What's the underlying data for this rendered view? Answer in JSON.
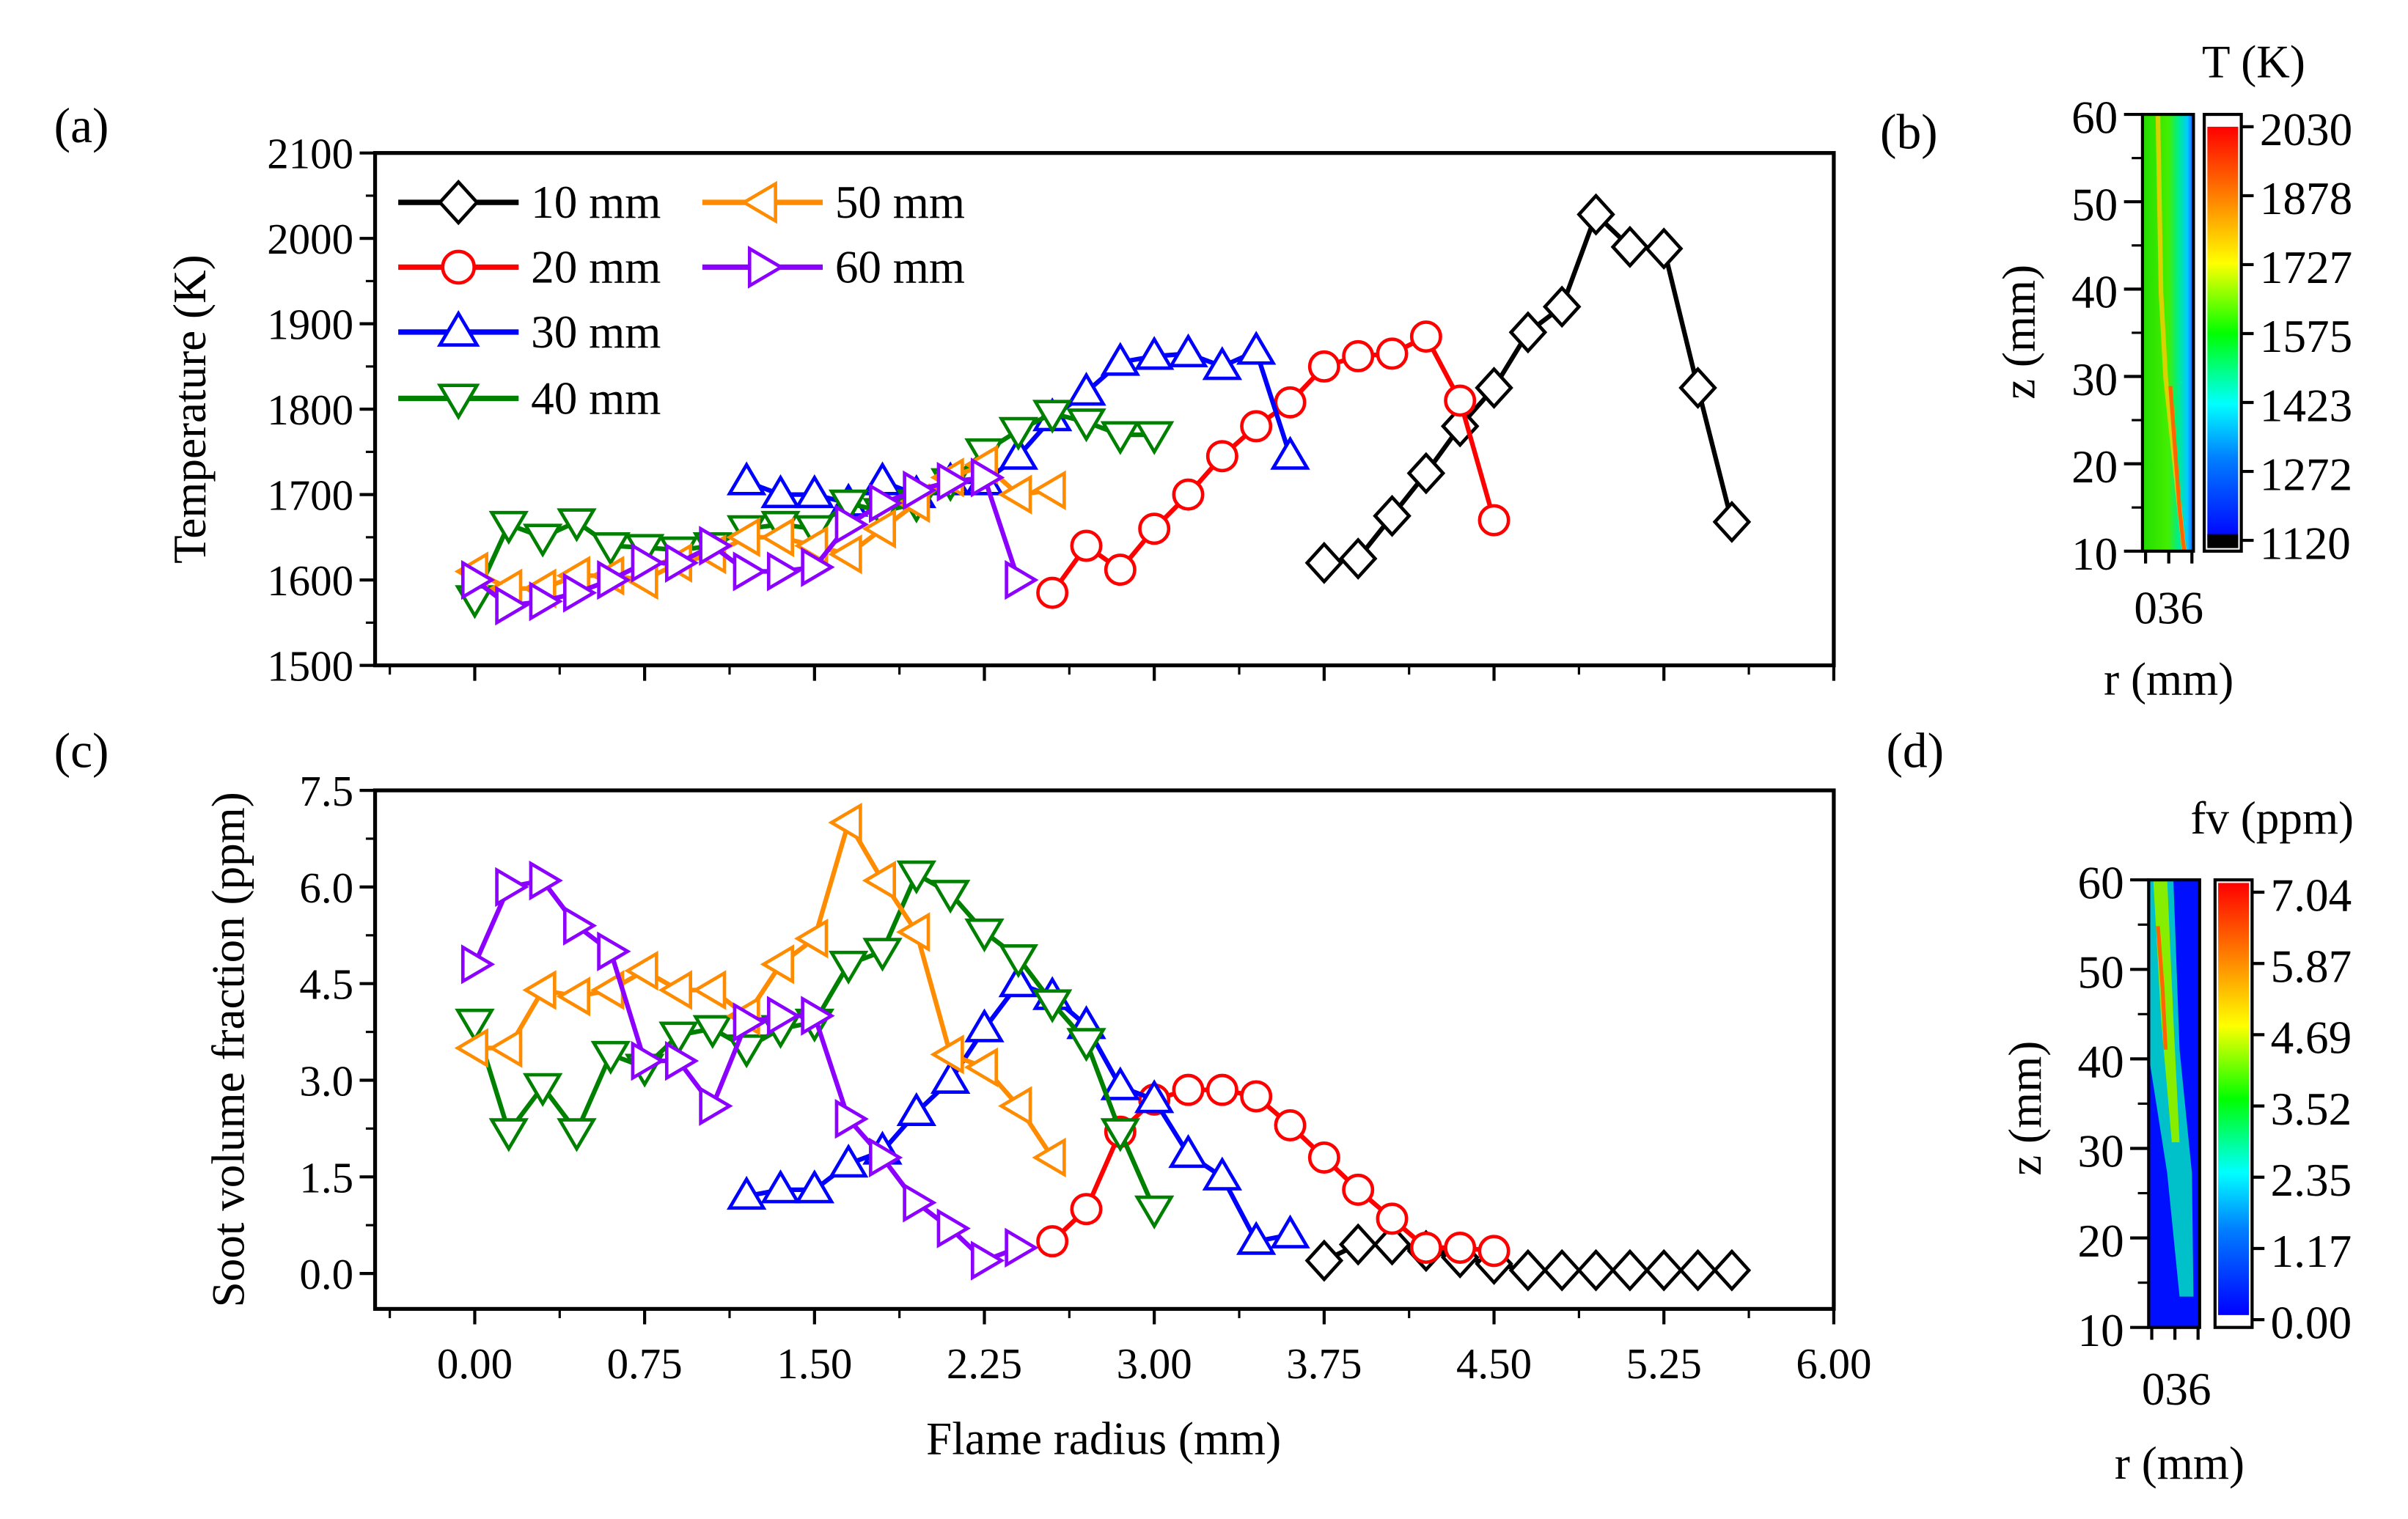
{
  "chart_data": [
    {
      "type": "line",
      "panel_label": "(a)",
      "title": "",
      "xlabel": "",
      "ylabel": "Temperature (K)",
      "xlim": [
        -0.44,
        6.0
      ],
      "ylim": [
        1500,
        2100
      ],
      "xticks": [
        "0.00",
        "0.75",
        "1.50",
        "2.25",
        "3.00",
        "3.75",
        "4.50",
        "5.25",
        "6.00"
      ],
      "yticks": [
        "1500",
        "1600",
        "1700",
        "1800",
        "1900",
        "2000",
        "2100"
      ],
      "legend_position": "top-left",
      "series": [
        {
          "name": "10 mm",
          "color": "#000000",
          "marker": "diamond",
          "x": [
            3.75,
            3.9,
            4.05,
            4.2,
            4.35,
            4.5,
            4.65,
            4.8,
            4.95,
            5.1,
            5.25,
            5.4,
            5.55
          ],
          "y": [
            1620,
            1625,
            1675,
            1725,
            1780,
            1825,
            1890,
            1920,
            2028,
            1990,
            1988,
            1825,
            1668
          ]
        },
        {
          "name": "20 mm",
          "color": "#ff0000",
          "marker": "circle",
          "x": [
            2.55,
            2.7,
            2.85,
            3.0,
            3.15,
            3.3,
            3.45,
            3.6,
            3.75,
            3.9,
            4.05,
            4.2,
            4.35,
            4.5
          ],
          "y": [
            1585,
            1640,
            1612,
            1660,
            1700,
            1745,
            1780,
            1808,
            1850,
            1862,
            1865,
            1885,
            1810,
            1670
          ]
        },
        {
          "name": "30 mm",
          "color": "#0000ff",
          "marker": "triangle-up",
          "x": [
            1.2,
            1.35,
            1.5,
            1.65,
            1.8,
            1.95,
            2.1,
            2.25,
            2.4,
            2.55,
            2.7,
            2.85,
            3.0,
            3.15,
            3.3,
            3.45,
            3.6
          ],
          "y": [
            1715,
            1700,
            1700,
            1690,
            1715,
            1700,
            1715,
            1715,
            1745,
            1790,
            1820,
            1855,
            1862,
            1865,
            1850,
            1868,
            1745
          ]
        },
        {
          "name": "40 mm",
          "color": "#008000",
          "marker": "triangle-down",
          "x": [
            0.0,
            0.15,
            0.3,
            0.45,
            0.6,
            0.75,
            0.9,
            1.05,
            1.2,
            1.35,
            1.5,
            1.65,
            1.8,
            1.95,
            2.1,
            2.25,
            2.4,
            2.55,
            2.7,
            2.85,
            3.0
          ],
          "y": [
            1578,
            1665,
            1650,
            1668,
            1640,
            1638,
            1635,
            1640,
            1660,
            1665,
            1660,
            1690,
            1680,
            1690,
            1715,
            1750,
            1775,
            1795,
            1785,
            1770,
            1770
          ]
        },
        {
          "name": "50 mm",
          "color": "#ff8c00",
          "marker": "triangle-left",
          "x": [
            0.0,
            0.15,
            0.3,
            0.45,
            0.6,
            0.75,
            0.9,
            1.05,
            1.2,
            1.35,
            1.5,
            1.65,
            1.8,
            1.95,
            2.1,
            2.25,
            2.4,
            2.55
          ],
          "y": [
            1610,
            1590,
            1590,
            1605,
            1605,
            1600,
            1620,
            1630,
            1650,
            1650,
            1640,
            1630,
            1660,
            1690,
            1720,
            1735,
            1700,
            1705
          ]
        },
        {
          "name": "60 mm",
          "color": "#8b00ff",
          "marker": "triangle-right",
          "x": [
            0.0,
            0.15,
            0.3,
            0.45,
            0.6,
            0.75,
            0.9,
            1.05,
            1.2,
            1.35,
            1.5,
            1.65,
            1.8,
            1.95,
            2.1,
            2.25,
            2.4
          ],
          "y": [
            1600,
            1570,
            1575,
            1585,
            1600,
            1620,
            1620,
            1640,
            1610,
            1610,
            1615,
            1665,
            1690,
            1705,
            1715,
            1720,
            1600
          ]
        }
      ]
    },
    {
      "type": "heatmap",
      "panel_label": "(b)",
      "colorbar_title": "T (K)",
      "ylabel": "z (mm)",
      "xlabel": "r (mm)",
      "xticks": "036",
      "yticks": [
        "60",
        "50",
        "40",
        "30",
        "20",
        "10"
      ],
      "colorbar_ticks": [
        "2030",
        "1878",
        "1727",
        "1575",
        "1423",
        "1272",
        "1120"
      ]
    },
    {
      "type": "line",
      "panel_label": "(c)",
      "title": "",
      "xlabel": "Flame radius (mm)",
      "ylabel": "Soot volume fraction (ppm)",
      "xlim": [
        -0.44,
        6.0
      ],
      "ylim": [
        -0.55,
        7.5
      ],
      "xticks": [
        "0.00",
        "0.75",
        "1.50",
        "2.25",
        "3.00",
        "3.75",
        "4.50",
        "5.25",
        "6.00"
      ],
      "yticks": [
        "0.0",
        "1.5",
        "3.0",
        "4.5",
        "6.0",
        "7.5"
      ],
      "series": [
        {
          "name": "10 mm",
          "color": "#000000",
          "marker": "diamond",
          "x": [
            3.75,
            3.9,
            4.05,
            4.2,
            4.35,
            4.5,
            4.65,
            4.8,
            4.95,
            5.1,
            5.25,
            5.4,
            5.55
          ],
          "y": [
            0.2,
            0.45,
            0.45,
            0.35,
            0.25,
            0.15,
            0.05,
            0.05,
            0.05,
            0.05,
            0.05,
            0.05,
            0.05
          ]
        },
        {
          "name": "20 mm",
          "color": "#ff0000",
          "marker": "circle",
          "x": [
            2.55,
            2.7,
            2.85,
            3.0,
            3.15,
            3.3,
            3.45,
            3.6,
            3.75,
            3.9,
            4.05,
            4.2,
            4.35,
            4.5
          ],
          "y": [
            0.5,
            1.0,
            2.2,
            2.7,
            2.85,
            2.85,
            2.75,
            2.3,
            1.8,
            1.3,
            0.85,
            0.4,
            0.4,
            0.35
          ]
        },
        {
          "name": "30 mm",
          "color": "#0000ff",
          "marker": "triangle-up",
          "x": [
            1.2,
            1.35,
            1.5,
            1.65,
            1.8,
            1.95,
            2.1,
            2.25,
            2.4,
            2.55,
            2.7,
            2.85,
            3.0,
            3.15,
            3.3,
            3.45,
            3.6
          ],
          "y": [
            1.2,
            1.3,
            1.3,
            1.7,
            1.9,
            2.5,
            3.0,
            3.8,
            4.5,
            4.3,
            3.85,
            2.9,
            2.7,
            1.85,
            1.5,
            0.5,
            0.6
          ]
        },
        {
          "name": "40 mm",
          "color": "#008000",
          "marker": "triangle-down",
          "x": [
            0.0,
            0.15,
            0.3,
            0.45,
            0.6,
            0.75,
            0.9,
            1.05,
            1.2,
            1.35,
            1.5,
            1.65,
            1.8,
            1.95,
            2.1,
            2.25,
            2.4,
            2.55,
            2.7,
            2.85,
            3.0
          ],
          "y": [
            3.9,
            2.2,
            2.9,
            2.2,
            3.4,
            3.2,
            3.7,
            3.8,
            3.5,
            3.8,
            3.9,
            4.8,
            5.0,
            6.2,
            5.9,
            5.3,
            4.9,
            4.2,
            3.6,
            2.2,
            1.0
          ]
        },
        {
          "name": "50 mm",
          "color": "#ff8c00",
          "marker": "triangle-left",
          "x": [
            0.0,
            0.15,
            0.3,
            0.45,
            0.6,
            0.75,
            0.9,
            1.05,
            1.2,
            1.35,
            1.5,
            1.65,
            1.8,
            1.95,
            2.1,
            2.25,
            2.4,
            2.55
          ],
          "y": [
            3.5,
            3.5,
            4.4,
            4.3,
            4.4,
            4.7,
            4.4,
            4.4,
            4.0,
            4.8,
            5.2,
            7.0,
            6.1,
            5.3,
            3.4,
            3.2,
            2.6,
            1.8
          ]
        },
        {
          "name": "60 mm",
          "color": "#8b00ff",
          "marker": "triangle-right",
          "x": [
            0.0,
            0.15,
            0.3,
            0.45,
            0.6,
            0.75,
            0.9,
            1.05,
            1.2,
            1.35,
            1.5,
            1.65,
            1.8,
            1.95,
            2.1,
            2.25,
            2.4
          ],
          "y": [
            4.8,
            6.0,
            6.1,
            5.4,
            5.0,
            3.3,
            3.3,
            2.6,
            3.9,
            4.0,
            4.0,
            2.4,
            1.8,
            1.1,
            0.7,
            0.2,
            0.4
          ]
        }
      ]
    },
    {
      "type": "heatmap",
      "panel_label": "(d)",
      "colorbar_title": "fv (ppm)",
      "ylabel": "z (mm)",
      "xlabel": "r (mm)",
      "xticks": "036",
      "yticks": [
        "60",
        "50",
        "40",
        "30",
        "20",
        "10"
      ],
      "colorbar_ticks": [
        "7.04",
        "5.87",
        "4.69",
        "3.52",
        "2.35",
        "1.17",
        "0.00"
      ]
    }
  ]
}
